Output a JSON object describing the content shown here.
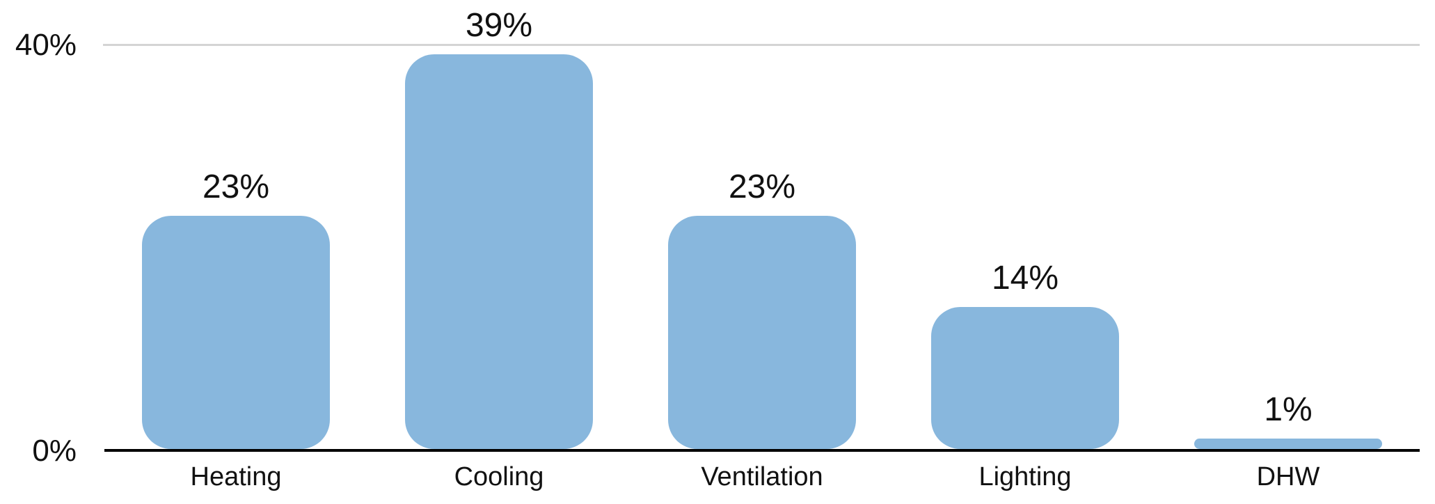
{
  "chart_data": {
    "type": "bar",
    "categories": [
      "Heating",
      "Cooling",
      "Ventilation",
      "Lighting",
      "DHW"
    ],
    "values": [
      23,
      39,
      23,
      14,
      1
    ],
    "value_labels": [
      "23%",
      "39%",
      "23%",
      "14%",
      "1%"
    ],
    "title": "",
    "xlabel": "",
    "ylabel": "",
    "ylim": [
      0,
      40
    ],
    "yticks": [
      {
        "value": 40,
        "label": "40%"
      },
      {
        "value": 0,
        "label": "0%"
      }
    ],
    "legend_position": "none",
    "grid": "single horizontal gridline at 40% (top); solid black baseline at 0%",
    "bar_color": "#88b7dd",
    "gridline_color": "#d4d4d4",
    "axis_color": "#000000",
    "text_color": "#111111",
    "background_color": "#ffffff"
  }
}
